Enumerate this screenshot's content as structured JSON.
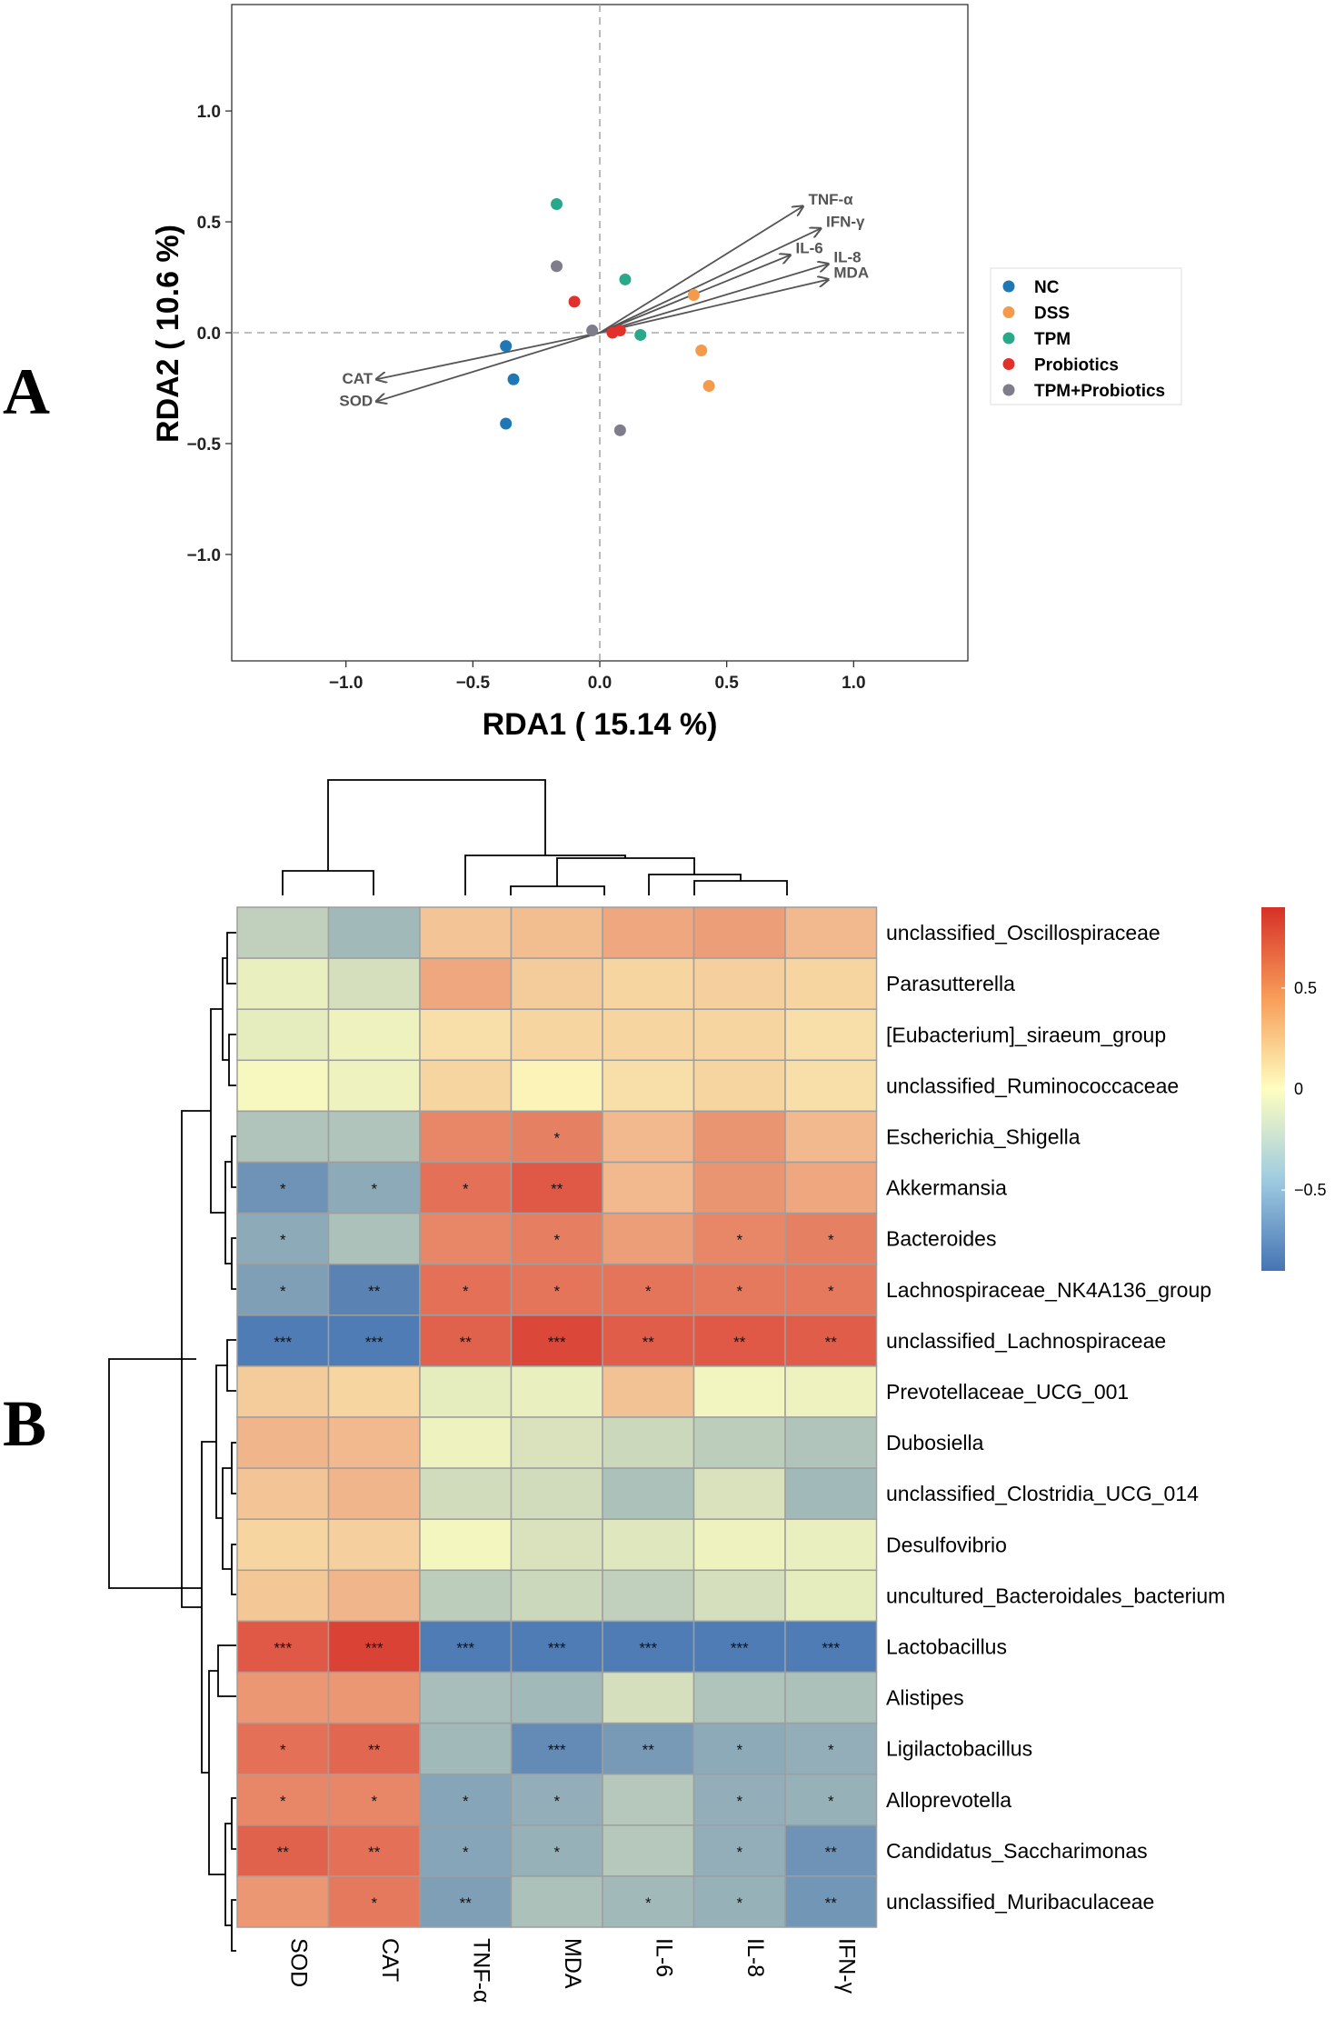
{
  "panels": {
    "a": "A",
    "b": "B"
  },
  "colors": {
    "NC": "#1f77b4",
    "DSS": "#f39a4b",
    "TPM": "#2aa98a",
    "Probiotics": "#e2302a",
    "TPM+Probiotics": "#7f7c8c",
    "arrow": "#555555",
    "heat_low": "#4574b3",
    "heat_mid": "#fefec0",
    "heat_high": "#d73027"
  },
  "chart_data": [
    {
      "type": "scatter",
      "title": "",
      "xlabel": "RDA1 ( 15.14 %)",
      "ylabel": "RDA2 ( 10.6 %)",
      "xlim": [
        -1.45,
        1.45
      ],
      "ylim": [
        -1.48,
        1.48
      ],
      "xticks": [
        -1.0,
        -0.5,
        0.0,
        0.5,
        1.0
      ],
      "xtick_labels": [
        "−1.0",
        "−0.5",
        "0.0",
        "0.5",
        "1.0"
      ],
      "yticks": [
        1.0,
        0.5,
        0.0,
        -0.5,
        -1.0
      ],
      "ytick_labels": [
        "1.0",
        "0.5",
        "0.0",
        "−0.5",
        "−1.0"
      ],
      "legend": {
        "position": "right",
        "entries": [
          "NC",
          "DSS",
          "TPM",
          "Probiotics",
          "TPM+Probiotics"
        ]
      },
      "series": [
        {
          "name": "NC",
          "points": [
            [
              -0.37,
              -0.06
            ],
            [
              -0.34,
              -0.21
            ],
            [
              -0.37,
              -0.41
            ]
          ]
        },
        {
          "name": "DSS",
          "points": [
            [
              0.37,
              0.17
            ],
            [
              0.4,
              -0.08
            ],
            [
              0.43,
              -0.24
            ]
          ]
        },
        {
          "name": "TPM",
          "points": [
            [
              -0.17,
              0.58
            ],
            [
              0.1,
              0.24
            ],
            [
              0.16,
              -0.01
            ]
          ]
        },
        {
          "name": "Probiotics",
          "points": [
            [
              -0.1,
              0.14
            ],
            [
              0.05,
              0.0
            ],
            [
              0.08,
              0.01
            ]
          ]
        },
        {
          "name": "TPM+Probiotics",
          "points": [
            [
              -0.17,
              0.3
            ],
            [
              -0.03,
              0.01
            ],
            [
              0.08,
              -0.44
            ]
          ]
        }
      ],
      "vectors": [
        {
          "name": "TNF-α",
          "end": [
            0.8,
            0.57
          ]
        },
        {
          "name": "IFN-γ",
          "end": [
            0.87,
            0.47
          ]
        },
        {
          "name": "IL-6",
          "end": [
            0.75,
            0.35
          ]
        },
        {
          "name": "IL-8",
          "end": [
            0.9,
            0.31
          ]
        },
        {
          "name": "MDA",
          "end": [
            0.9,
            0.24
          ]
        },
        {
          "name": "CAT",
          "end": [
            -0.88,
            -0.21
          ]
        },
        {
          "name": "SOD",
          "end": [
            -0.88,
            -0.31
          ]
        }
      ]
    },
    {
      "type": "heatmap",
      "columns": [
        "SOD",
        "CAT",
        "TNF-α",
        "MDA",
        "IL-6",
        "IL-8",
        "IFN-γ"
      ],
      "rows": [
        "unclassified_Oscillospiraceae",
        "Parasutterella",
        "[Eubacterium]_siraeum_group",
        "unclassified_Ruminococcaceae",
        "Escherichia_Shigella",
        "Akkermansia",
        "Bacteroides",
        "Lachnospiraceae_NK4A136_group",
        "unclassified_Lachnospiraceae",
        "Prevotellaceae_UCG_001",
        "Dubosiella",
        "unclassified_Clostridia_UCG_014",
        "Desulfovibrio",
        "uncultured_Bacteroidales_bacterium",
        "Lactobacillus",
        "Alistipes",
        "Ligilactobacillus",
        "Alloprevotella",
        "Candidatus_Saccharimonas",
        "unclassified_Muribaculaceae"
      ],
      "values": [
        [
          -0.3,
          -0.45,
          0.25,
          0.28,
          0.38,
          0.42,
          0.3
        ],
        [
          -0.1,
          -0.2,
          0.38,
          0.22,
          0.18,
          0.2,
          0.18
        ],
        [
          -0.12,
          -0.08,
          0.14,
          0.18,
          0.18,
          0.18,
          0.14
        ],
        [
          -0.04,
          -0.08,
          0.18,
          0.05,
          0.14,
          0.18,
          0.14
        ],
        [
          -0.38,
          -0.38,
          0.52,
          0.55,
          0.3,
          0.46,
          0.3
        ],
        [
          -0.7,
          -0.55,
          0.62,
          0.72,
          0.3,
          0.46,
          0.38
        ],
        [
          -0.55,
          -0.4,
          0.52,
          0.56,
          0.42,
          0.52,
          0.55
        ],
        [
          -0.62,
          -0.8,
          0.62,
          0.6,
          0.6,
          0.58,
          0.58
        ],
        [
          -0.85,
          -0.85,
          0.68,
          0.8,
          0.7,
          0.72,
          0.7
        ],
        [
          0.22,
          0.18,
          -0.12,
          -0.1,
          0.26,
          -0.06,
          -0.08
        ],
        [
          0.32,
          0.3,
          -0.08,
          -0.18,
          -0.25,
          -0.32,
          -0.38
        ],
        [
          0.25,
          0.32,
          -0.22,
          -0.22,
          -0.4,
          -0.18,
          -0.45
        ],
        [
          0.18,
          0.2,
          -0.05,
          -0.18,
          -0.15,
          -0.08,
          -0.1
        ],
        [
          0.24,
          0.32,
          -0.32,
          -0.25,
          -0.3,
          -0.2,
          -0.12
        ],
        [
          0.72,
          0.82,
          -0.85,
          -0.85,
          -0.85,
          -0.85,
          -0.85
        ],
        [
          0.45,
          0.45,
          -0.42,
          -0.45,
          -0.2,
          -0.38,
          -0.4
        ],
        [
          0.62,
          0.66,
          -0.45,
          -0.75,
          -0.65,
          -0.55,
          -0.52
        ],
        [
          0.52,
          0.52,
          -0.58,
          -0.52,
          -0.35,
          -0.52,
          -0.5
        ],
        [
          0.68,
          0.62,
          -0.58,
          -0.5,
          -0.35,
          -0.52,
          -0.7
        ],
        [
          0.45,
          0.58,
          -0.62,
          -0.4,
          -0.45,
          -0.5,
          -0.68
        ]
      ],
      "significance": [
        [
          "",
          "",
          "",
          "",
          "",
          "",
          ""
        ],
        [
          "",
          "",
          "",
          "",
          "",
          "",
          ""
        ],
        [
          "",
          "",
          "",
          "",
          "",
          "",
          ""
        ],
        [
          "",
          "",
          "",
          "",
          "",
          "",
          ""
        ],
        [
          "",
          "",
          "",
          "*",
          "",
          "",
          ""
        ],
        [
          "*",
          "*",
          "*",
          "**",
          "",
          "",
          ""
        ],
        [
          "*",
          "",
          "",
          "*",
          "",
          "*",
          "*"
        ],
        [
          "*",
          "**",
          "*",
          "*",
          "*",
          "*",
          "*"
        ],
        [
          "***",
          "***",
          "**",
          "***",
          "**",
          "**",
          "**"
        ],
        [
          "",
          "",
          "",
          "",
          "",
          "",
          ""
        ],
        [
          "",
          "",
          "",
          "",
          "",
          "",
          ""
        ],
        [
          "",
          "",
          "",
          "",
          "",
          "",
          ""
        ],
        [
          "",
          "",
          "",
          "",
          "",
          "",
          ""
        ],
        [
          "",
          "",
          "",
          "",
          "",
          "",
          ""
        ],
        [
          "***",
          "***",
          "***",
          "***",
          "***",
          "***",
          "***"
        ],
        [
          "",
          "",
          "",
          "",
          "",
          "",
          ""
        ],
        [
          "*",
          "**",
          "",
          "***",
          "**",
          "*",
          "*"
        ],
        [
          "*",
          "*",
          "*",
          "*",
          "",
          "*",
          "*"
        ],
        [
          "**",
          "**",
          "*",
          "*",
          "",
          "*",
          "**"
        ],
        [
          "",
          "*",
          "**",
          "",
          "*",
          "*",
          "**"
        ]
      ],
      "color_scale": {
        "range": [
          -0.9,
          0.9
        ],
        "ticks": [
          0.5,
          0,
          -0.5
        ],
        "tick_labels": [
          "0.5",
          "0",
          "−0.5"
        ]
      },
      "column_dendrogram": true,
      "row_dendrogram": true
    }
  ]
}
